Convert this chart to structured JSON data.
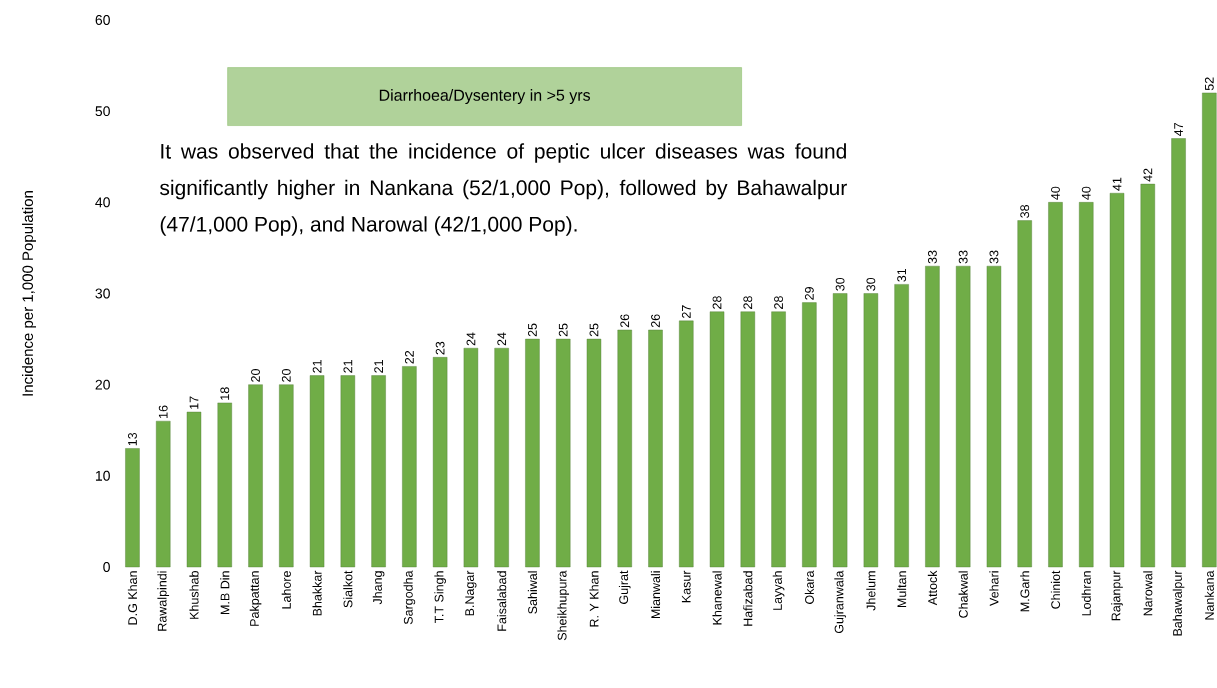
{
  "chart_data": {
    "type": "bar",
    "title": "Diarrhoea/Dysentery in >5 yrs",
    "ylabel": "Incidence per 1,000 Population",
    "annotations": [
      "It was observed that the incidence of peptic ulcer diseases was found significantly higher in Nankana (52/1,000 Pop), followed by Bahawalpur (47/1,000 Pop), and Narowal (42/1,000 Pop)."
    ],
    "categories": [
      "D.G Khan",
      "Rawalpindi",
      "Khushab",
      "M.B Din",
      "Pakpattan",
      "Lahore",
      "Bhakkar",
      "Sialkot",
      "Jhang",
      "Sargodha",
      "T.T Singh",
      "B.Nagar",
      "Faisalabad",
      "Sahiwal",
      "Sheikhupura",
      "R. Y Khan",
      "Gujrat",
      "Mianwali",
      "Kasur",
      "Khanewal",
      "Hafizabad",
      "Layyah",
      "Okara",
      "Gujranwala",
      "Jhelum",
      "Multan",
      "Attock",
      "Chakwal",
      "Vehari",
      "M.Garh",
      "Chiniot",
      "Lodhran",
      "Rajanpur",
      "Narowal",
      "Bahawalpur",
      "Nankana"
    ],
    "values": [
      13,
      16,
      17,
      18,
      20,
      20,
      21,
      21,
      21,
      22,
      23,
      24,
      24,
      25,
      25,
      25,
      26,
      26,
      27,
      28,
      28,
      28,
      29,
      30,
      30,
      31,
      33,
      33,
      33,
      38,
      40,
      40,
      41,
      42,
      47,
      52
    ],
    "color": "#70ad47",
    "data_labels": true,
    "ylim": [
      0,
      60
    ],
    "yticks": [
      0,
      10,
      20,
      30,
      40,
      50,
      60
    ]
  }
}
